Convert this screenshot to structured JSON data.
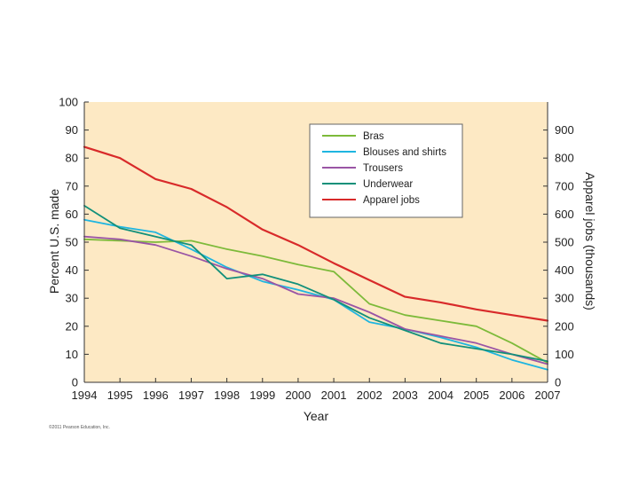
{
  "chart_data": {
    "type": "line",
    "x": [
      1994,
      1995,
      1996,
      1997,
      1998,
      1999,
      2000,
      2001,
      2002,
      2003,
      2004,
      2005,
      2006,
      2007
    ],
    "xlabel": "Year",
    "ylabel": "Percent U.S. made",
    "y2label": "Apparel jobs (thousands)",
    "ylim": [
      0,
      100
    ],
    "y2lim": [
      0,
      1000
    ],
    "yticks": [
      0,
      10,
      20,
      30,
      40,
      50,
      60,
      70,
      80,
      90,
      100
    ],
    "y2ticks": [
      0,
      100,
      200,
      300,
      400,
      500,
      600,
      700,
      800,
      900
    ],
    "legend_position": "top-right",
    "series": [
      {
        "name": "Bras",
        "color": "#7dba3a",
        "axis": "left",
        "values": [
          51,
          50.5,
          50,
          50.5,
          47.5,
          45,
          42,
          39.5,
          28,
          24,
          22,
          20,
          14,
          7
        ]
      },
      {
        "name": "Blouses and shirts",
        "color": "#1fb5e0",
        "axis": "left",
        "values": [
          58,
          55.5,
          53.5,
          47.5,
          41,
          36,
          33,
          29.5,
          21.5,
          19,
          16,
          12.5,
          8,
          4.5
        ]
      },
      {
        "name": "Trousers",
        "color": "#9a55a5",
        "axis": "left",
        "values": [
          52,
          51,
          49,
          45,
          40.5,
          37,
          31.5,
          30,
          25,
          19,
          16.5,
          14,
          10,
          6.5
        ]
      },
      {
        "name": "Underwear",
        "color": "#12907a",
        "axis": "left",
        "values": [
          63,
          55,
          52,
          49,
          37,
          38.5,
          35,
          29.5,
          23,
          18.5,
          14,
          12,
          10,
          7.5
        ]
      },
      {
        "name": "Apparel jobs",
        "color": "#d82a2a",
        "axis": "right",
        "values": [
          840,
          800,
          725,
          690,
          625,
          545,
          490,
          425,
          365,
          305,
          285,
          260,
          240,
          220
        ]
      }
    ],
    "copyright": "©2011 Pearson Education, Inc."
  },
  "colors": {
    "plot_background": "#fde9c4",
    "axis": "#333333"
  }
}
